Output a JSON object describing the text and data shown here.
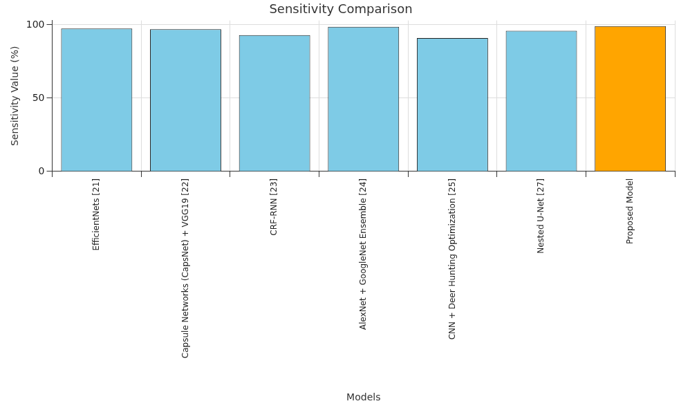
{
  "chart_data": {
    "type": "bar",
    "title": "Sensitivity Comparison",
    "xlabel": "Models",
    "ylabel": "Sensitivity Value (%)",
    "categories": [
      "EfficientNets [21]",
      "Capsule Networks (CapsNet) + VGG19 [22]",
      "CRF-RNN [23]",
      "AlexNet + GoogleNet Ensemble [24]",
      "CNN + Deer Hunting Optimization [25]",
      "Nested U-Net [27]",
      "Proposed Model"
    ],
    "values": [
      97.5,
      97,
      93,
      98.7,
      91,
      96,
      99.2
    ],
    "colors": [
      "#7ecbe6",
      "#7ecbe6",
      "#7ecbe6",
      "#7ecbe6",
      "#7ecbe6",
      "#7ecbe6",
      "#ffa500"
    ],
    "ylim": [
      0,
      103
    ],
    "yticks": [
      0,
      50,
      100
    ],
    "grid": true
  }
}
